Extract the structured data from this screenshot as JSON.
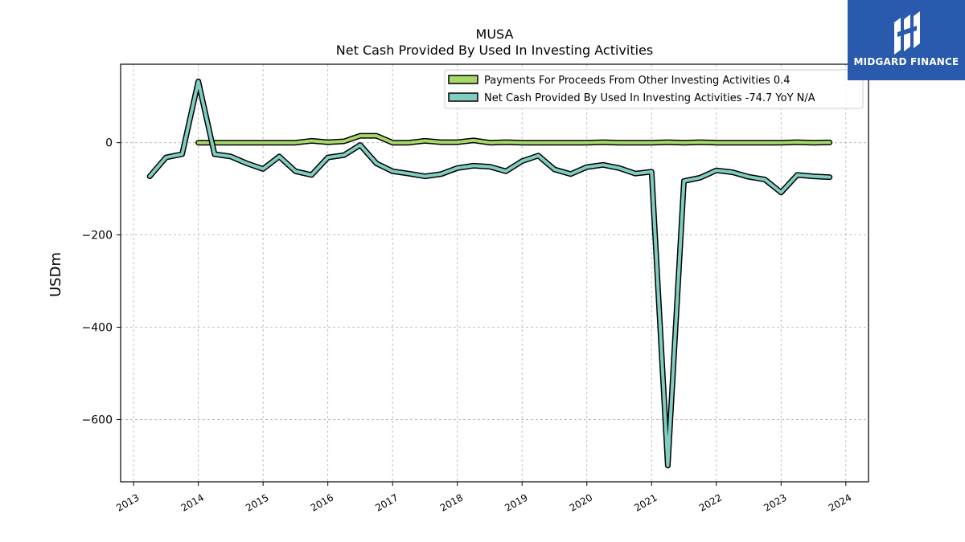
{
  "chart_data": {
    "type": "line",
    "title": "MUSA",
    "subtitle": "Net Cash Provided By Used In Investing Activities",
    "xlabel": "",
    "ylabel": "USDm",
    "xlim": [
      2012.8,
      2024.35
    ],
    "ylim": [
      -735,
      170
    ],
    "yticks": [
      0,
      -200,
      -400,
      -600
    ],
    "ytick_labels": [
      "0",
      "−200",
      "−400",
      "−600"
    ],
    "xticks": [
      2013,
      2014,
      2015,
      2016,
      2017,
      2018,
      2019,
      2020,
      2021,
      2022,
      2023,
      2024
    ],
    "xtick_labels": [
      "2013",
      "2014",
      "2015",
      "2016",
      "2017",
      "2018",
      "2019",
      "2020",
      "2021",
      "2022",
      "2023",
      "2024"
    ],
    "grid": true,
    "legend_position": "top-right",
    "series": [
      {
        "name": "Payments For Proceeds From Other Investing Activities",
        "legend_label": "Payments For Proceeds From Other Investing Activities  0.4",
        "color": "#a6d96a",
        "x": [
          2014.0,
          2014.25,
          2014.5,
          2014.75,
          2015.0,
          2015.25,
          2015.5,
          2015.75,
          2016.0,
          2016.25,
          2016.5,
          2016.75,
          2017.0,
          2017.25,
          2017.5,
          2017.75,
          2018.0,
          2018.25,
          2018.5,
          2018.75,
          2019.0,
          2019.25,
          2019.5,
          2019.75,
          2020.0,
          2020.25,
          2020.5,
          2020.75,
          2021.0,
          2021.25,
          2021.5,
          2021.75,
          2022.0,
          2022.25,
          2022.5,
          2022.75,
          2023.0,
          2023.25,
          2023.5,
          2023.75
        ],
        "y": [
          0,
          0,
          0,
          0,
          0,
          0,
          0,
          4,
          1,
          3,
          15,
          15,
          0,
          0,
          4,
          1,
          1,
          5,
          0,
          1,
          0,
          0,
          0,
          0,
          0,
          1,
          0,
          0,
          0,
          1,
          0,
          1,
          0,
          0,
          0,
          0,
          0,
          1,
          0,
          0.4
        ]
      },
      {
        "name": "Net Cash Provided By Used In Investing Activities",
        "legend_label": "Net Cash Provided By Used In Investing Activities  -74.7 YoY N/A",
        "color": "#80cdc1",
        "x": [
          2013.25,
          2013.5,
          2013.75,
          2014.0,
          2014.25,
          2014.5,
          2014.75,
          2015.0,
          2015.25,
          2015.5,
          2015.75,
          2016.0,
          2016.25,
          2016.5,
          2016.75,
          2017.0,
          2017.25,
          2017.5,
          2017.75,
          2018.0,
          2018.25,
          2018.5,
          2018.75,
          2019.0,
          2019.25,
          2019.5,
          2019.75,
          2020.0,
          2020.25,
          2020.5,
          2020.75,
          2021.0,
          2021.25,
          2021.5,
          2021.75,
          2022.0,
          2022.25,
          2022.5,
          2022.75,
          2023.0,
          2023.25,
          2023.5,
          2023.75
        ],
        "y": [
          -73,
          -32,
          -25,
          133,
          -25,
          -30,
          -45,
          -57,
          -30,
          -62,
          -70,
          -32,
          -27,
          -5,
          -45,
          -62,
          -67,
          -73,
          -68,
          -55,
          -50,
          -52,
          -62,
          -40,
          -28,
          -58,
          -68,
          -53,
          -48,
          -55,
          -67,
          -63,
          -700,
          -83,
          -76,
          -60,
          -64,
          -74,
          -80,
          -108,
          -70,
          -73,
          -74.7
        ]
      }
    ]
  },
  "logo": {
    "text": "MIDGARD FINANCE",
    "background": "#2a5aad"
  }
}
